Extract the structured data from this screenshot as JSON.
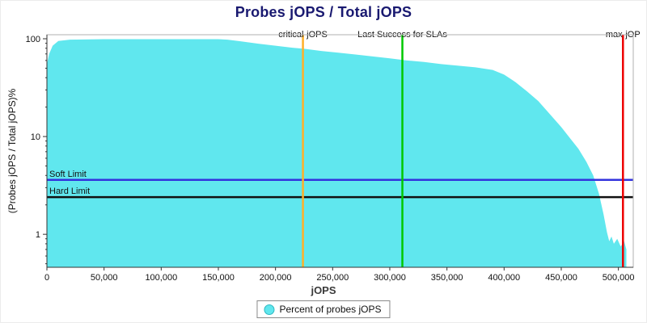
{
  "chart_data": {
    "type": "area",
    "title": "Probes jOPS / Total jOPS",
    "xlabel": "jOPS",
    "ylabel": "(Probes jOPS / Total jOPS)%",
    "y_scale": "log",
    "grid": false,
    "xlim": [
      0,
      513000
    ],
    "ylim": [
      0.46,
      110
    ],
    "x_ticks": [
      0,
      50000,
      100000,
      150000,
      200000,
      250000,
      300000,
      350000,
      400000,
      450000,
      500000
    ],
    "x_tick_labels": [
      "0",
      "50,000",
      "100,000",
      "150,000",
      "200,000",
      "250,000",
      "300,000",
      "350,000",
      "400,000",
      "450,000",
      "500,000"
    ],
    "y_ticks": [
      1,
      10,
      100
    ],
    "y_tick_labels": [
      "1",
      "10",
      "100"
    ],
    "series": [
      {
        "name": "Percent of probes jOPS",
        "color": "#60E7EE",
        "points": [
          [
            0,
            55
          ],
          [
            2000,
            70
          ],
          [
            5000,
            85
          ],
          [
            10000,
            95
          ],
          [
            20000,
            98
          ],
          [
            50000,
            99
          ],
          [
            100000,
            99
          ],
          [
            150000,
            99
          ],
          [
            158000,
            98
          ],
          [
            170000,
            94
          ],
          [
            185000,
            89
          ],
          [
            200000,
            85
          ],
          [
            215000,
            81
          ],
          [
            225000,
            79
          ],
          [
            240000,
            75
          ],
          [
            255000,
            72
          ],
          [
            270000,
            69
          ],
          [
            285000,
            66
          ],
          [
            300000,
            63
          ],
          [
            315000,
            60
          ],
          [
            330000,
            58
          ],
          [
            345000,
            55
          ],
          [
            360000,
            53
          ],
          [
            375000,
            51
          ],
          [
            390000,
            48
          ],
          [
            400000,
            43
          ],
          [
            410000,
            36
          ],
          [
            420000,
            29
          ],
          [
            430000,
            23
          ],
          [
            440000,
            17
          ],
          [
            450000,
            12.5
          ],
          [
            458000,
            9.5
          ],
          [
            465000,
            7.5
          ],
          [
            472000,
            5.5
          ],
          [
            478000,
            4
          ],
          [
            483000,
            2.6
          ],
          [
            487000,
            1.6
          ],
          [
            490000,
            1.05
          ],
          [
            492000,
            0.85
          ],
          [
            494000,
            0.95
          ],
          [
            496000,
            0.8
          ],
          [
            499000,
            0.9
          ],
          [
            502000,
            0.75
          ],
          [
            505000,
            0.85
          ],
          [
            507000,
            0.7
          ]
        ]
      }
    ],
    "vlines": [
      {
        "x": 224000,
        "label": "critical-jOPS",
        "color": "#FFB028"
      },
      {
        "x": 311000,
        "label": "Last Success for SLAs",
        "color": "#00C800"
      },
      {
        "x": 504000,
        "label": "max-jOP",
        "color": "#EE0000"
      }
    ],
    "hlines": [
      {
        "y": 3.6,
        "label": "Soft Limit",
        "color": "#3333DD"
      },
      {
        "y": 2.4,
        "label": "Hard Limit",
        "color": "#111111"
      }
    ],
    "legend": [
      {
        "label": "Percent of probes jOPS",
        "color": "#60E7EE"
      }
    ],
    "legend_position": "bottom-center"
  }
}
